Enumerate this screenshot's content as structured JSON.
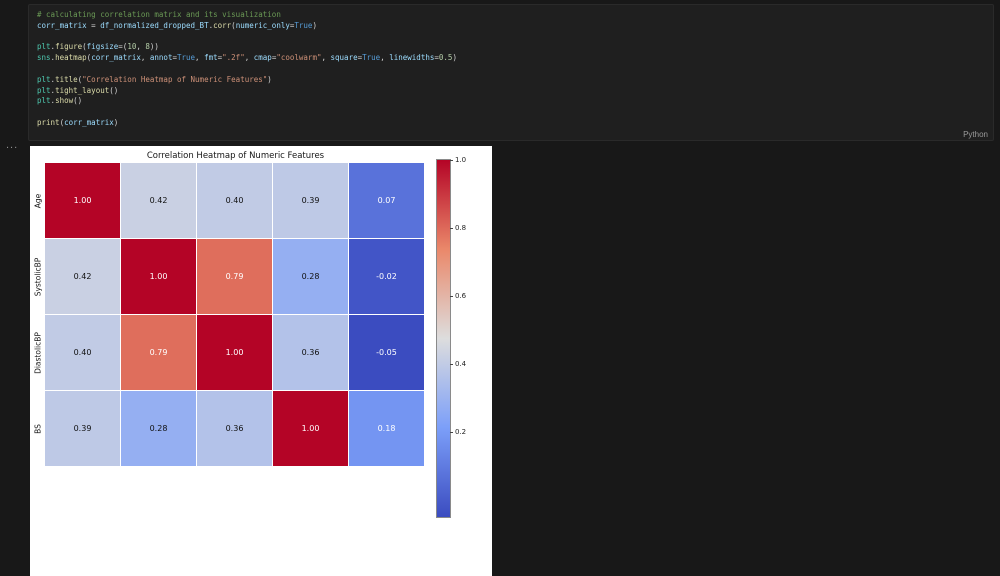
{
  "app": {
    "background": "#181818",
    "cell_background": "#1f1f1f"
  },
  "cell": {
    "language_label": "Python",
    "code_lines": [
      [
        {
          "c": "cm",
          "t": "# calculating correlation matrix and its visualization"
        }
      ],
      [
        {
          "c": "v",
          "t": "corr_matrix"
        },
        {
          "c": "p",
          "t": " = "
        },
        {
          "c": "v",
          "t": "df_normalized_dropped_BT"
        },
        {
          "c": "p",
          "t": "."
        },
        {
          "c": "f",
          "t": "corr"
        },
        {
          "c": "p",
          "t": "("
        },
        {
          "c": "v",
          "t": "numeric_only"
        },
        {
          "c": "p",
          "t": "="
        },
        {
          "c": "k",
          "t": "True"
        },
        {
          "c": "p",
          "t": ")"
        }
      ],
      [],
      [
        {
          "c": "m",
          "t": "plt"
        },
        {
          "c": "p",
          "t": "."
        },
        {
          "c": "f",
          "t": "figure"
        },
        {
          "c": "p",
          "t": "("
        },
        {
          "c": "v",
          "t": "figsize"
        },
        {
          "c": "p",
          "t": "=("
        },
        {
          "c": "n",
          "t": "10"
        },
        {
          "c": "p",
          "t": ", "
        },
        {
          "c": "n",
          "t": "8"
        },
        {
          "c": "p",
          "t": "))"
        }
      ],
      [
        {
          "c": "m",
          "t": "sns"
        },
        {
          "c": "p",
          "t": "."
        },
        {
          "c": "f",
          "t": "heatmap"
        },
        {
          "c": "p",
          "t": "("
        },
        {
          "c": "v",
          "t": "corr_matrix"
        },
        {
          "c": "p",
          "t": ", "
        },
        {
          "c": "v",
          "t": "annot"
        },
        {
          "c": "p",
          "t": "="
        },
        {
          "c": "k",
          "t": "True"
        },
        {
          "c": "p",
          "t": ", "
        },
        {
          "c": "v",
          "t": "fmt"
        },
        {
          "c": "p",
          "t": "="
        },
        {
          "c": "s",
          "t": "\".2f\""
        },
        {
          "c": "p",
          "t": ", "
        },
        {
          "c": "v",
          "t": "cmap"
        },
        {
          "c": "p",
          "t": "="
        },
        {
          "c": "s",
          "t": "\"coolwarm\""
        },
        {
          "c": "p",
          "t": ", "
        },
        {
          "c": "v",
          "t": "square"
        },
        {
          "c": "p",
          "t": "="
        },
        {
          "c": "k",
          "t": "True"
        },
        {
          "c": "p",
          "t": ", "
        },
        {
          "c": "v",
          "t": "linewidths"
        },
        {
          "c": "p",
          "t": "="
        },
        {
          "c": "n",
          "t": "0.5"
        },
        {
          "c": "p",
          "t": ")"
        }
      ],
      [],
      [
        {
          "c": "m",
          "t": "plt"
        },
        {
          "c": "p",
          "t": "."
        },
        {
          "c": "f",
          "t": "title"
        },
        {
          "c": "p",
          "t": "("
        },
        {
          "c": "s",
          "t": "\"Correlation Heatmap of Numeric Features\""
        },
        {
          "c": "p",
          "t": ")"
        }
      ],
      [
        {
          "c": "m",
          "t": "plt"
        },
        {
          "c": "p",
          "t": "."
        },
        {
          "c": "f",
          "t": "tight_layout"
        },
        {
          "c": "p",
          "t": "()"
        }
      ],
      [
        {
          "c": "m",
          "t": "plt"
        },
        {
          "c": "p",
          "t": "."
        },
        {
          "c": "f",
          "t": "show"
        },
        {
          "c": "p",
          "t": "()"
        }
      ],
      [],
      [
        {
          "c": "f",
          "t": "print"
        },
        {
          "c": "p",
          "t": "("
        },
        {
          "c": "v",
          "t": "corr_matrix"
        },
        {
          "c": "p",
          "t": ")"
        }
      ]
    ]
  },
  "output": {
    "collapse_indicator": "..."
  },
  "chart_data": {
    "type": "heatmap",
    "title": "Correlation Heatmap of Numeric Features",
    "rows": [
      "Age",
      "SystolicBP",
      "DiastolicBP",
      "BS"
    ],
    "values": [
      [
        1.0,
        0.42,
        0.4,
        0.39,
        0.07
      ],
      [
        0.42,
        1.0,
        0.79,
        0.28,
        -0.02
      ],
      [
        0.4,
        0.79,
        1.0,
        0.36,
        -0.05
      ],
      [
        0.39,
        0.28,
        0.36,
        1.0,
        0.18
      ]
    ],
    "cell_format": ".2f",
    "colormap": "coolwarm",
    "vmin": -0.05,
    "vmax": 1.0,
    "colorbar_ticks": [
      "1.0",
      "0.8",
      "0.6",
      "0.4",
      "0.2"
    ],
    "grid_lines": "white-0.5",
    "legend_position": "right-colorbar"
  }
}
